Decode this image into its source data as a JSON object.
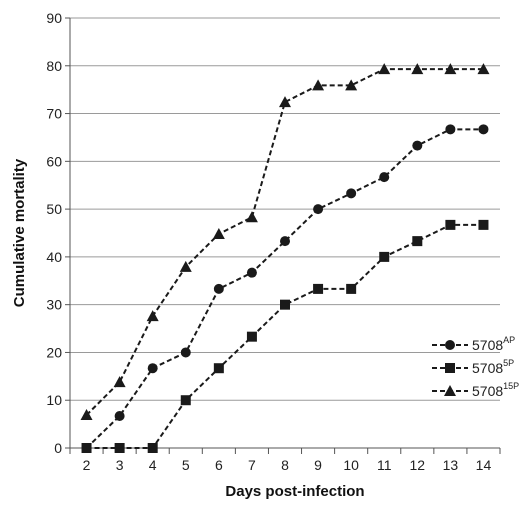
{
  "chart_data": {
    "type": "line",
    "xlabel": "Days post-infection",
    "ylabel": "Cumulative mortality",
    "xlim": [
      2,
      14
    ],
    "ylim": [
      0,
      90
    ],
    "ytick_step": 10,
    "grid": "horizontal",
    "legend_position": "right",
    "line_style": "dashed",
    "line_color": "#1a1a1a",
    "x": [
      2,
      3,
      4,
      5,
      6,
      7,
      8,
      9,
      10,
      11,
      12,
      13,
      14
    ],
    "series": [
      {
        "name": "5708",
        "name_superscript": "AP",
        "marker": "circle",
        "values": [
          0,
          6.7,
          16.7,
          20,
          33.3,
          36.7,
          43.3,
          50,
          53.3,
          56.7,
          63.3,
          66.7,
          66.7
        ]
      },
      {
        "name": "5708",
        "name_superscript": "5P",
        "marker": "square",
        "values": [
          0,
          0,
          0,
          10,
          16.7,
          23.3,
          30,
          33.3,
          33.3,
          40,
          43.3,
          46.7,
          46.7
        ]
      },
      {
        "name": "5708",
        "name_superscript": "15P",
        "marker": "triangle",
        "values": [
          6.9,
          13.8,
          27.6,
          37.9,
          44.8,
          48.3,
          72.4,
          75.9,
          75.9,
          79.3,
          79.3,
          79.3,
          79.3
        ]
      }
    ]
  }
}
